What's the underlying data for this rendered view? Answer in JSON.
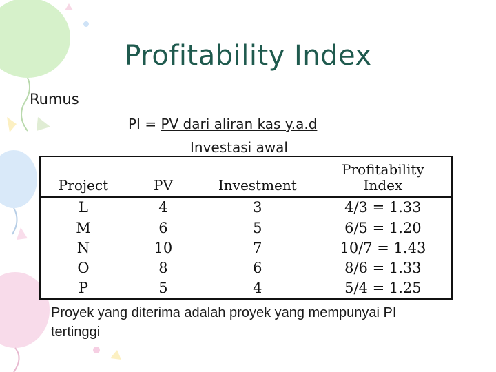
{
  "slide": {
    "title": "Profitability Index",
    "rumus_label": "Rumus",
    "formula": {
      "prefix": "PI = ",
      "numerator": "PV dari aliran kas y.a.d",
      "denominator": "Investasi awal"
    },
    "table": {
      "headers": [
        "Project",
        "PV",
        "Investment",
        "Profitability Index"
      ],
      "rows": [
        [
          "L",
          "4",
          "3",
          "4/3 = 1.33"
        ],
        [
          "M",
          "6",
          "5",
          "6/5 = 1.20"
        ],
        [
          "N",
          "10",
          "7",
          "10/7 = 1.43"
        ],
        [
          "O",
          "8",
          "6",
          "8/6 = 1.33"
        ],
        [
          "P",
          "5",
          "4",
          "5/4 = 1.25"
        ]
      ]
    },
    "conclusion": "Proyek yang diterima adalah proyek yang mempunyai PI tertinggi"
  },
  "colors": {
    "title": "#1f5a4e",
    "balloon_green": "#c8ecb8",
    "balloon_blue": "#cfe3f7",
    "balloon_pink": "#f6cfe3",
    "balloon_yellow": "#fbf3c4"
  }
}
